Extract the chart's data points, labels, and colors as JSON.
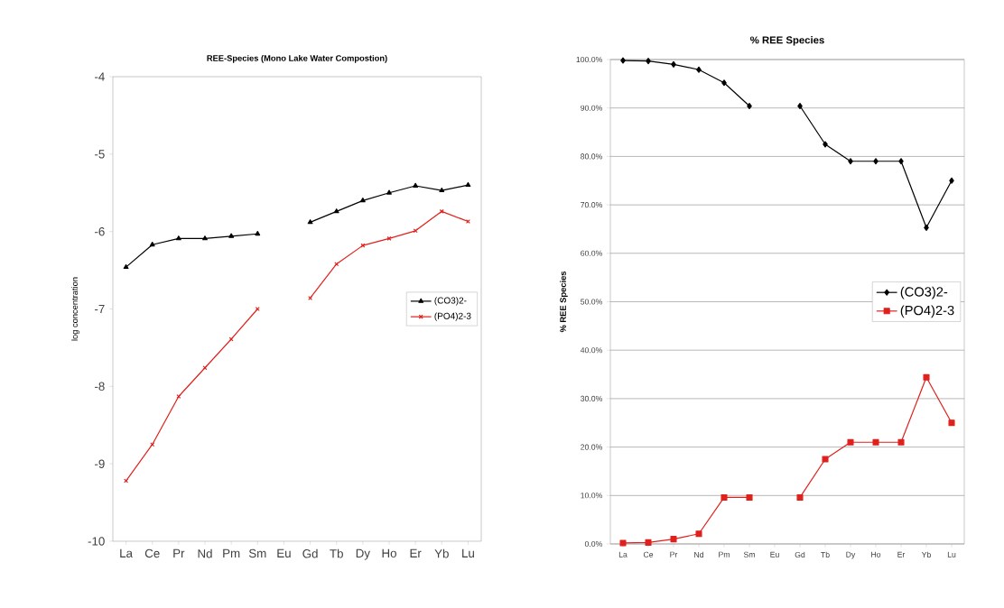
{
  "chart_data": [
    {
      "type": "line",
      "title": "REE-Species (Mono Lake Water Compostion)",
      "ylabel": "log concentration",
      "categories": [
        "La",
        "Ce",
        "Pr",
        "Nd",
        "Pm",
        "Sm",
        "Eu",
        "Gd",
        "Tb",
        "Dy",
        "Ho",
        "Er",
        "Yb",
        "Lu"
      ],
      "series": [
        {
          "name": "(CO3)2-",
          "color": "#000000",
          "marker": "triangle",
          "values": [
            -6.46,
            -6.17,
            -6.09,
            -6.09,
            -6.06,
            -6.03,
            null,
            -5.88,
            -5.74,
            -5.6,
            -5.5,
            -5.41,
            -5.47,
            -5.4
          ]
        },
        {
          "name": "(PO4)2-3",
          "color": "#e0201c",
          "marker": "cross",
          "values": [
            -9.22,
            -8.75,
            -8.13,
            -7.76,
            -7.39,
            -7.0,
            null,
            -6.86,
            -6.42,
            -6.18,
            -6.09,
            -5.99,
            -5.74,
            -5.87
          ]
        }
      ],
      "ylim": [
        -10,
        -4
      ],
      "yticks": [
        -10,
        -9,
        -8,
        -7,
        -6,
        -5,
        -4
      ],
      "grid": false,
      "legend": "right"
    },
    {
      "type": "line",
      "title": "% REE Species",
      "ylabel": "% REE Species",
      "categories": [
        "La",
        "Ce",
        "Pr",
        "Nd",
        "Pm",
        "Sm",
        "Eu",
        "Gd",
        "Tb",
        "Dy",
        "Ho",
        "Er",
        "Yb",
        "Lu"
      ],
      "series": [
        {
          "name": "(CO3)2-",
          "color": "#000000",
          "marker": "diamond",
          "values": [
            99.8,
            99.7,
            99.0,
            97.9,
            95.2,
            90.4,
            null,
            90.4,
            82.5,
            79.0,
            79.0,
            79.0,
            65.3,
            75.0
          ]
        },
        {
          "name": "(PO4)2-3",
          "color": "#e0201c",
          "marker": "square",
          "values": [
            0.2,
            0.3,
            1.0,
            2.1,
            9.6,
            9.6,
            null,
            9.6,
            17.5,
            21.0,
            21.0,
            21.0,
            34.4,
            25.0
          ]
        }
      ],
      "ylim": [
        0,
        100
      ],
      "yticks": [
        {
          "value": 0,
          "label": "0.0%"
        },
        {
          "value": 10,
          "label": "10.0%"
        },
        {
          "value": 20,
          "label": "20.0%"
        },
        {
          "value": 30,
          "label": "30.0%"
        },
        {
          "value": 40,
          "label": "40.0%"
        },
        {
          "value": 50,
          "label": "50.0%"
        },
        {
          "value": 60,
          "label": "60.0%"
        },
        {
          "value": 70,
          "label": "70.0%"
        },
        {
          "value": 80,
          "label": "80.0%"
        },
        {
          "value": 90,
          "label": "90.0%"
        },
        {
          "value": 100,
          "label": "100.0%"
        }
      ],
      "grid": "y",
      "legend": "right"
    }
  ]
}
